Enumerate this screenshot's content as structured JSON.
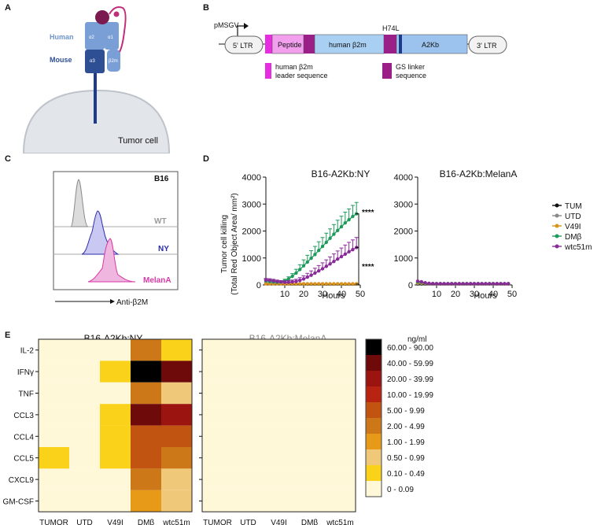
{
  "panels": {
    "a": "A",
    "b": "B",
    "c": "C",
    "d": "D",
    "e": "E"
  },
  "panelA": {
    "human_label": "Human",
    "mouse_label": "Mouse",
    "alpha2": "α2",
    "alpha1": "α1",
    "alpha3": "α3",
    "b2m": "β2m",
    "cell_label": "Tumor cell"
  },
  "panelB": {
    "promoter": "pMSGV",
    "ltr5": "5' LTR",
    "ltr3": "3' LTR",
    "peptide": "Peptide",
    "human_b2m": "human β2m",
    "mutation": "H74L",
    "a2kb": "A2Kb",
    "legend_leader": [
      "human β2m",
      "leader sequence"
    ],
    "legend_gs": [
      "GS linker",
      "sequence"
    ],
    "colors": {
      "leader": "#e62ee0",
      "gs": "#9a1f86",
      "peptide_fill": "#f2a0ee",
      "b2m_fill": "#a9d0f2",
      "a2kb_fill": "#9cc2ee",
      "dark": "#1e3a8a"
    }
  },
  "panelC": {
    "title": "B16",
    "xlabel": "Anti-β2M",
    "rows": [
      {
        "label": "WT",
        "color": "#9a9a9a"
      },
      {
        "label": "NY",
        "color": "#2c2ca8"
      },
      {
        "label": "MelanA",
        "color": "#d63aa6"
      }
    ]
  },
  "chart_data": [
    {
      "type": "line",
      "title": "B16-A2Kb:NY",
      "xlabel": "Hours",
      "ylabel": [
        "Tumor cell killing",
        "(Total Red Object Area/ mm²)"
      ],
      "xlim": [
        0,
        50
      ],
      "ylim": [
        0,
        4000
      ],
      "xticks": [
        10,
        20,
        30,
        40,
        50
      ],
      "yticks": [
        0,
        1000,
        2000,
        3000,
        4000
      ],
      "x": [
        0,
        2,
        4,
        6,
        8,
        10,
        12,
        14,
        16,
        18,
        20,
        22,
        24,
        26,
        28,
        30,
        32,
        34,
        36,
        38,
        40,
        42,
        44,
        46,
        48
      ],
      "series": [
        {
          "name": "TUM",
          "color": "#111111",
          "marker": "diamond",
          "values": [
            60,
            60,
            55,
            50,
            45,
            40,
            38,
            36,
            35,
            34,
            33,
            32,
            32,
            31,
            31,
            30,
            30,
            30,
            30,
            30,
            30,
            30,
            30,
            30,
            30
          ]
        },
        {
          "name": "UTD",
          "color": "#888888",
          "marker": "square",
          "values": [
            80,
            75,
            70,
            65,
            60,
            55,
            50,
            48,
            46,
            45,
            44,
            43,
            42,
            41,
            40,
            40,
            40,
            40,
            40,
            40,
            40,
            40,
            40,
            40,
            40
          ]
        },
        {
          "name": "V49I",
          "color": "#d9921a",
          "marker": "triangle",
          "values": [
            40,
            40,
            40,
            40,
            40,
            40,
            40,
            40,
            40,
            40,
            40,
            40,
            40,
            40,
            40,
            40,
            40,
            40,
            40,
            40,
            40,
            40,
            40,
            40,
            40
          ]
        },
        {
          "name": "DMβ",
          "color": "#1e9a5a",
          "marker": "diamond",
          "values": [
            150,
            130,
            110,
            100,
            110,
            150,
            220,
            320,
            440,
            570,
            710,
            850,
            990,
            1130,
            1280,
            1430,
            1580,
            1730,
            1880,
            2020,
            2160,
            2300,
            2420,
            2540,
            2640
          ],
          "errors": [
            60,
            60,
            60,
            50,
            50,
            60,
            80,
            100,
            140,
            180,
            220,
            250,
            280,
            300,
            320,
            330,
            340,
            350,
            360,
            380,
            390,
            400,
            400,
            410,
            420
          ]
        },
        {
          "name": "wtc51m",
          "color": "#8a2a9a",
          "marker": "circle",
          "values": [
            180,
            170,
            150,
            130,
            110,
            100,
            100,
            110,
            130,
            170,
            220,
            290,
            360,
            440,
            520,
            600,
            690,
            780,
            870,
            960,
            1050,
            1140,
            1230,
            1310,
            1390
          ],
          "errors": [
            60,
            60,
            60,
            50,
            50,
            50,
            60,
            70,
            80,
            100,
            120,
            140,
            160,
            180,
            200,
            220,
            240,
            260,
            280,
            300,
            320,
            340,
            350,
            360,
            370
          ]
        }
      ],
      "annotations": [
        "****",
        "****"
      ]
    },
    {
      "type": "line",
      "title": "B16-A2Kb:MelanA",
      "xlabel": "Hours",
      "xlim": [
        0,
        50
      ],
      "ylim": [
        0,
        4000
      ],
      "xticks": [
        10,
        20,
        30,
        40,
        50
      ],
      "yticks": [
        0,
        1000,
        2000,
        3000,
        4000
      ],
      "x": [
        0,
        2,
        4,
        6,
        8,
        10,
        12,
        14,
        16,
        18,
        20,
        22,
        24,
        26,
        28,
        30,
        32,
        34,
        36,
        38,
        40,
        42,
        44,
        46,
        48
      ],
      "series": [
        {
          "name": "TUM",
          "color": "#111111",
          "values": [
            40,
            40,
            40,
            40,
            40,
            40,
            40,
            40,
            40,
            40,
            40,
            40,
            40,
            40,
            40,
            40,
            40,
            40,
            40,
            40,
            40,
            40,
            40,
            40,
            40
          ]
        },
        {
          "name": "UTD",
          "color": "#888888",
          "values": [
            60,
            60,
            55,
            50,
            50,
            50,
            50,
            50,
            50,
            50,
            50,
            50,
            50,
            50,
            50,
            50,
            50,
            50,
            50,
            50,
            50,
            50,
            50,
            50,
            50
          ]
        },
        {
          "name": "V49I",
          "color": "#d9921a",
          "values": [
            80,
            75,
            60,
            50,
            45,
            40,
            40,
            40,
            40,
            40,
            40,
            40,
            40,
            40,
            40,
            40,
            40,
            40,
            40,
            40,
            40,
            40,
            40,
            40,
            40
          ]
        },
        {
          "name": "DMβ",
          "color": "#1e9a5a",
          "values": [
            110,
            100,
            70,
            55,
            50,
            45,
            45,
            45,
            45,
            45,
            45,
            45,
            45,
            45,
            45,
            45,
            45,
            45,
            45,
            45,
            45,
            45,
            45,
            45,
            45
          ]
        },
        {
          "name": "wtc51m",
          "color": "#8a2a9a",
          "values": [
            140,
            120,
            80,
            60,
            50,
            45,
            45,
            45,
            45,
            45,
            45,
            45,
            45,
            45,
            45,
            45,
            45,
            45,
            45,
            45,
            45,
            45,
            45,
            45,
            45
          ]
        }
      ]
    },
    {
      "type": "heatmap",
      "title": "B16-A2Kb:NY",
      "rows": [
        "IL-2",
        "IFNγ",
        "TNF",
        "CCL3",
        "CCL4",
        "CCL5",
        "CXCL9",
        "GM-CSF"
      ],
      "columns": [
        "TUMOR",
        "UTD",
        "V49I",
        "DMβ",
        "wtc51m"
      ],
      "bin_index": [
        [
          0,
          0,
          0,
          4,
          1
        ],
        [
          0,
          0,
          1,
          9,
          8
        ],
        [
          0,
          0,
          0,
          4,
          2
        ],
        [
          0,
          0,
          1,
          8,
          7
        ],
        [
          0,
          0,
          1,
          5,
          5
        ],
        [
          1,
          0,
          1,
          5,
          4
        ],
        [
          0,
          0,
          0,
          4,
          2
        ],
        [
          0,
          0,
          0,
          3,
          2
        ]
      ]
    },
    {
      "type": "heatmap",
      "title": "B16-A2Kb:MelanA",
      "rows": [
        "IL-2",
        "IFNγ",
        "TNF",
        "CCL3",
        "CCL4",
        "CCL5",
        "CXCL9",
        "GM-CSF"
      ],
      "columns": [
        "TUMOR",
        "UTD",
        "V49I",
        "DMβ",
        "wtc51m"
      ],
      "bin_index": [
        [
          0,
          0,
          0,
          0,
          0
        ],
        [
          0,
          0,
          0,
          0,
          0
        ],
        [
          0,
          0,
          0,
          0,
          0
        ],
        [
          0,
          0,
          0,
          0,
          0
        ],
        [
          0,
          0,
          0,
          0,
          0
        ],
        [
          0,
          0,
          0,
          0,
          0
        ],
        [
          0,
          0,
          0,
          0,
          0
        ],
        [
          0,
          0,
          0,
          0,
          0
        ]
      ]
    }
  ],
  "legend": {
    "unit": "ng/ml",
    "bins": [
      {
        "label": "60.00 - 90.00",
        "color": "#000000"
      },
      {
        "label": "40.00 - 59.99",
        "color": "#6e0a0a"
      },
      {
        "label": "20.00 - 39.99",
        "color": "#9c140f"
      },
      {
        "label": "10.00 - 19.99",
        "color": "#b92412"
      },
      {
        "label": "5.00 - 9.99",
        "color": "#c25412"
      },
      {
        "label": "2.00 - 4.99",
        "color": "#cc7818"
      },
      {
        "label": "1.00 - 1.99",
        "color": "#e69a18"
      },
      {
        "label": "0.50 - 0.99",
        "color": "#f0c87a"
      },
      {
        "label": "0.10 - 0.49",
        "color": "#fad21a"
      },
      {
        "label": "0 - 0.09",
        "color": "#fff8d8"
      }
    ]
  }
}
